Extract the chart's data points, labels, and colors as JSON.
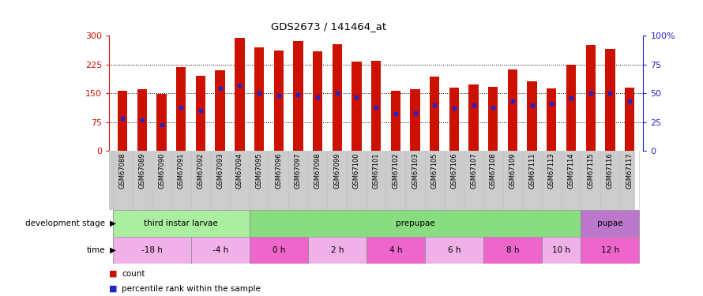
{
  "title": "GDS2673 / 141464_at",
  "samples": [
    "GSM67088",
    "GSM67089",
    "GSM67090",
    "GSM67091",
    "GSM67092",
    "GSM67093",
    "GSM67094",
    "GSM67095",
    "GSM67096",
    "GSM67097",
    "GSM67098",
    "GSM67099",
    "GSM67100",
    "GSM67101",
    "GSM67102",
    "GSM67103",
    "GSM67105",
    "GSM67106",
    "GSM67107",
    "GSM67108",
    "GSM67109",
    "GSM67111",
    "GSM67113",
    "GSM67114",
    "GSM67115",
    "GSM67116",
    "GSM67117"
  ],
  "counts": [
    157,
    161,
    148,
    218,
    195,
    210,
    294,
    270,
    260,
    285,
    258,
    278,
    232,
    235,
    157,
    161,
    193,
    165,
    172,
    167,
    212,
    182,
    163,
    225,
    276,
    266,
    164
  ],
  "percentile_ranks": [
    28,
    27,
    23,
    38,
    35,
    54,
    57,
    50,
    48,
    49,
    47,
    50,
    47,
    38,
    32,
    33,
    40,
    37,
    40,
    38,
    43,
    40,
    41,
    46,
    50,
    50,
    43
  ],
  "ylim_left": [
    0,
    300
  ],
  "ylim_right": [
    0,
    100
  ],
  "yticks_left": [
    0,
    75,
    150,
    225,
    300
  ],
  "yticks_right": [
    0,
    25,
    50,
    75,
    100
  ],
  "bar_color": "#cc1100",
  "marker_color": "#2222cc",
  "bg_color": "#ffffff",
  "stage_row": [
    {
      "label": "third instar larvae",
      "start": 0,
      "end": 7,
      "color": "#aaeea0"
    },
    {
      "label": "prepupae",
      "start": 7,
      "end": 24,
      "color": "#88dd80"
    },
    {
      "label": "pupae",
      "start": 24,
      "end": 27,
      "color": "#bb77cc"
    }
  ],
  "time_row": [
    {
      "label": "-18 h",
      "start": 0,
      "end": 4,
      "color": "#f0b0e8"
    },
    {
      "label": "-4 h",
      "start": 4,
      "end": 7,
      "color": "#f0b0e8"
    },
    {
      "label": "0 h",
      "start": 7,
      "end": 10,
      "color": "#ee66cc"
    },
    {
      "label": "2 h",
      "start": 10,
      "end": 13,
      "color": "#f0b0e8"
    },
    {
      "label": "4 h",
      "start": 13,
      "end": 16,
      "color": "#ee66cc"
    },
    {
      "label": "6 h",
      "start": 16,
      "end": 19,
      "color": "#f0b0e8"
    },
    {
      "label": "8 h",
      "start": 19,
      "end": 22,
      "color": "#ee66cc"
    },
    {
      "label": "10 h",
      "start": 22,
      "end": 24,
      "color": "#f0b0e8"
    },
    {
      "label": "12 h",
      "start": 24,
      "end": 27,
      "color": "#ee66cc"
    }
  ],
  "legend_count_color": "#cc1100",
  "legend_pct_color": "#2222cc",
  "axis_color_left": "#cc1100",
  "axis_color_right": "#2222cc",
  "tick_area_color": "#cccccc"
}
